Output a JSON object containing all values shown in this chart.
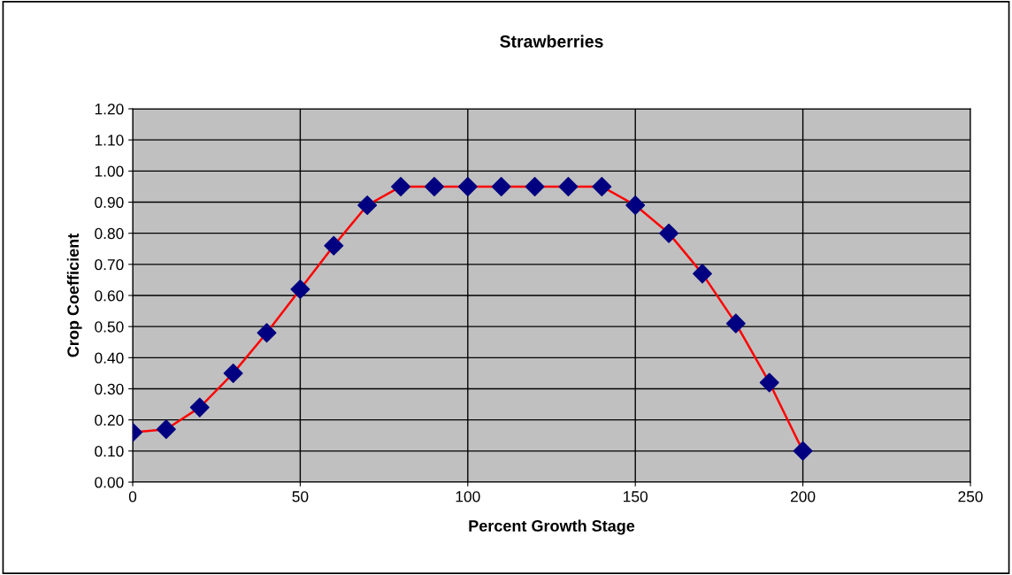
{
  "chart_data": {
    "type": "line",
    "title": "Strawberries",
    "xlabel": "Percent Growth Stage",
    "ylabel": "Crop Coefficient",
    "x": [
      0,
      10,
      20,
      30,
      40,
      50,
      60,
      70,
      80,
      90,
      100,
      110,
      120,
      130,
      140,
      150,
      160,
      170,
      180,
      190,
      200
    ],
    "series": [
      {
        "color": "#ff0000",
        "colors": [
          "#000080",
          "#000080",
          "#000080",
          "#000080",
          "#000080",
          "#000080",
          "#000080",
          "#000080",
          "#000080",
          "#000080",
          "#000080",
          "#000080",
          "#000080",
          "#000080",
          "#000080",
          "#000080",
          "#000080",
          "#000080",
          "#000080",
          "#000080",
          "#000080"
        ],
        "values": [
          0.16,
          0.17,
          0.24,
          0.35,
          0.48,
          0.62,
          0.76,
          0.89,
          0.95,
          0.95,
          0.95,
          0.95,
          0.95,
          0.95,
          0.95,
          0.89,
          0.8,
          0.67,
          0.51,
          0.32,
          0.1
        ]
      }
    ],
    "xlim": [
      0,
      250
    ],
    "xticks": [
      0,
      50,
      100,
      150,
      200,
      250
    ],
    "ylim": [
      0,
      1.2
    ],
    "yticks": [
      {
        "value": 0,
        "label": "0.00"
      },
      {
        "value": 0.1,
        "label": "0.10"
      },
      {
        "value": 0.2,
        "label": "0.20"
      },
      {
        "value": 0.3,
        "label": "0.30"
      },
      {
        "value": 0.4,
        "label": "0.40"
      },
      {
        "value": 0.5,
        "label": "0.50"
      },
      {
        "value": 0.6,
        "label": "0.60"
      },
      {
        "value": 0.7,
        "label": "0.70"
      },
      {
        "value": 0.8,
        "label": "0.80"
      },
      {
        "value": 0.9,
        "label": "0.90"
      },
      {
        "value": 1.0,
        "label": "1.00"
      },
      {
        "value": 1.1,
        "label": "1.10"
      },
      {
        "value": 1.2,
        "label": "1.20"
      }
    ],
    "grid": true,
    "legend": false,
    "marker": "diamond",
    "line_style": "solid"
  }
}
